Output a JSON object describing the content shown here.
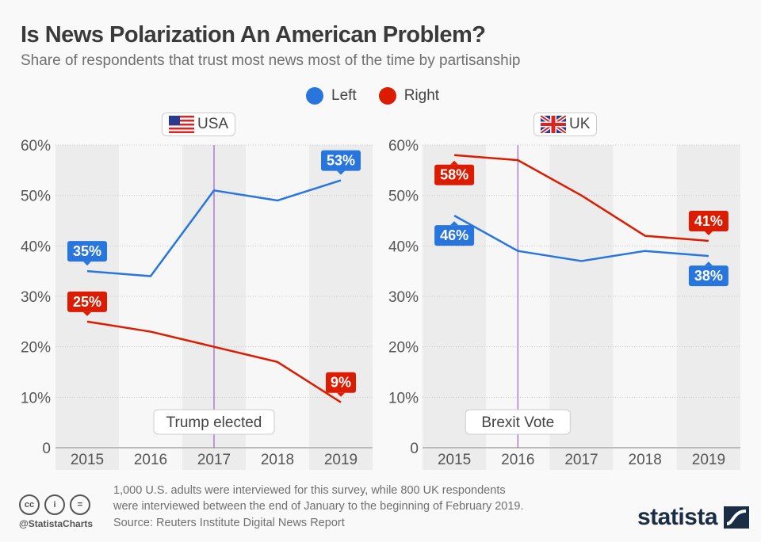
{
  "header": {
    "title": "Is News Polarization An American Problem?",
    "subtitle": "Share of respondents that trust most news most of the time by partisanship"
  },
  "legend": [
    {
      "label": "Left",
      "color": "#2876dd"
    },
    {
      "label": "Right",
      "color": "#dc1c00"
    }
  ],
  "colors": {
    "left": "#2876dd",
    "right": "#dc1c00",
    "event_line": "#a05ad8",
    "band_dark": "#ececec",
    "band_light": "#f7f7f7"
  },
  "chart_data": [
    {
      "type": "line",
      "panel": "USA",
      "categories": [
        "2015",
        "2016",
        "2017",
        "2018",
        "2019"
      ],
      "series": [
        {
          "name": "Left",
          "values": [
            35,
            34,
            51,
            49,
            53
          ]
        },
        {
          "name": "Right",
          "values": [
            25,
            23,
            20,
            17,
            9
          ]
        }
      ],
      "ylim": [
        0,
        60
      ],
      "yticks": [
        "0",
        "10%",
        "20%",
        "30%",
        "40%",
        "50%",
        "60%"
      ],
      "annotation": {
        "label": "Trump elected",
        "at": "2017"
      },
      "data_labels": [
        {
          "series": "Left",
          "category": "2015",
          "text": "35%",
          "position": "above"
        },
        {
          "series": "Left",
          "category": "2019",
          "text": "53%",
          "position": "above"
        },
        {
          "series": "Right",
          "category": "2015",
          "text": "25%",
          "position": "above"
        },
        {
          "series": "Right",
          "category": "2019",
          "text": "9%",
          "position": "above"
        }
      ],
      "grid": true
    },
    {
      "type": "line",
      "panel": "UK",
      "categories": [
        "2015",
        "2016",
        "2017",
        "2018",
        "2019"
      ],
      "series": [
        {
          "name": "Left",
          "values": [
            46,
            39,
            37,
            39,
            38
          ]
        },
        {
          "name": "Right",
          "values": [
            58,
            57,
            50,
            42,
            41
          ]
        }
      ],
      "ylim": [
        0,
        60
      ],
      "yticks": [
        "0",
        "10%",
        "20%",
        "30%",
        "40%",
        "50%",
        "60%"
      ],
      "annotation": {
        "label": "Brexit Vote",
        "at": "2016"
      },
      "data_labels": [
        {
          "series": "Left",
          "category": "2015",
          "text": "46%",
          "position": "below"
        },
        {
          "series": "Left",
          "category": "2019",
          "text": "38%",
          "position": "below"
        },
        {
          "series": "Right",
          "category": "2015",
          "text": "58%",
          "position": "below"
        },
        {
          "series": "Right",
          "category": "2019",
          "text": "41%",
          "position": "above"
        }
      ],
      "grid": true
    }
  ],
  "panels": {
    "usa_label": "USA",
    "uk_label": "UK"
  },
  "footer": {
    "note_line1": "1,000 U.S. adults were interviewed for this survey, while 800 UK respondents",
    "note_line2": "were interviewed between the end of January to the beginning of February 2019.",
    "source": "Source: Reuters Institute Digital News Report",
    "handle": "@StatistaCharts",
    "logo": "statista",
    "cc_icons": [
      "cc",
      "i",
      "="
    ]
  }
}
